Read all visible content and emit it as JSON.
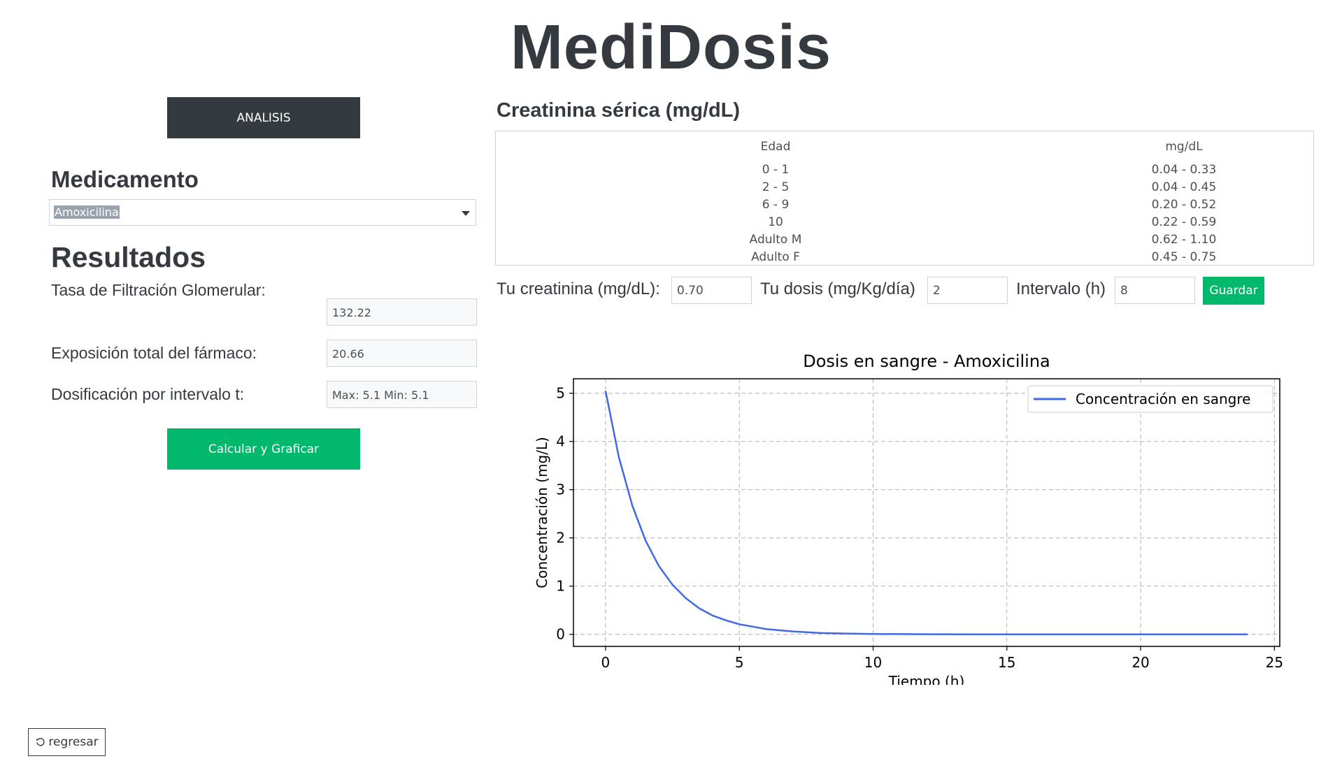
{
  "app": {
    "title": "MediDosis"
  },
  "left": {
    "analisis_label": "ANALISIS",
    "medicamento_heading": "Medicamento",
    "medicamento_selected": "Amoxicilina",
    "resultados_heading": "Resultados",
    "results": [
      {
        "label": "Tasa de Filtración Glomerular:",
        "value": "132.22"
      },
      {
        "label": "Exposición total del fármaco:",
        "value": "20.66"
      },
      {
        "label": "Dosificación por intervalo t:",
        "value": "Max: 5.1 Min: 5.1"
      }
    ],
    "calcular_label": "Calcular y Graficar"
  },
  "creatinina": {
    "heading": "Creatinina sérica (mg/dL)",
    "table": {
      "headers": [
        "Edad",
        "mg/dL"
      ],
      "rows": [
        [
          "0 - 1",
          "0.04 - 0.33"
        ],
        [
          "2 - 5",
          "0.04 - 0.45"
        ],
        [
          "6 - 9",
          "0.20 - 0.52"
        ],
        [
          "10",
          "0.22 - 0.59"
        ],
        [
          "Adulto M",
          "0.62 - 1.10"
        ],
        [
          "Adulto F",
          "0.45 - 0.75"
        ]
      ]
    },
    "form": {
      "creatinina_label": "Tu creatinina (mg/dL):",
      "creatinina_value": "0.70",
      "dosis_label": "Tu dosis (mg/Kg/día)",
      "dosis_value": "2",
      "intervalo_label": "Intervalo (h)",
      "intervalo_value": "8",
      "guardar_label": "Guardar"
    }
  },
  "chart_data": {
    "type": "line",
    "title": "Dosis en sangre - Amoxicilina",
    "xlabel": "Tiempo (h)",
    "ylabel": "Concentración (mg/L)",
    "xlim": [
      -1.2,
      25.2
    ],
    "ylim": [
      -0.25,
      5.3
    ],
    "xticks": [
      0,
      5,
      10,
      15,
      20,
      25
    ],
    "yticks": [
      0,
      1,
      2,
      3,
      4,
      5
    ],
    "grid": true,
    "legend_position": "top-right",
    "series": [
      {
        "name": "Concentración en sangre",
        "color": "#4169e1",
        "x": [
          0,
          0.5,
          1,
          1.5,
          2,
          2.5,
          3,
          3.5,
          4,
          4.5,
          5,
          6,
          7,
          8,
          9,
          10,
          12,
          14,
          16,
          18,
          20,
          22,
          24
        ],
        "y": [
          5.05,
          3.67,
          2.67,
          1.94,
          1.41,
          1.03,
          0.75,
          0.54,
          0.39,
          0.29,
          0.21,
          0.11,
          0.06,
          0.03,
          0.016,
          0.008,
          0.002,
          0.0005,
          0.0001,
          0,
          0,
          0,
          0
        ]
      }
    ]
  },
  "footer": {
    "regresar_label": "regresar"
  }
}
